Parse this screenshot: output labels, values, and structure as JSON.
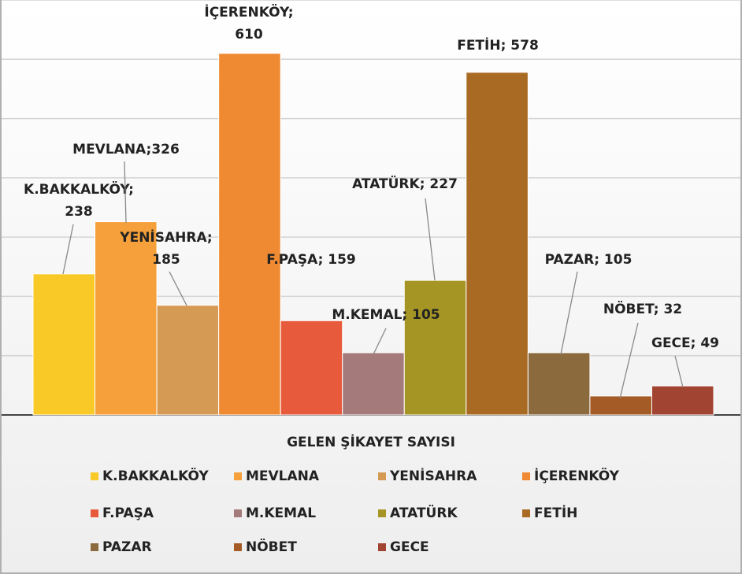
{
  "chart_data": {
    "type": "bar",
    "categories": [
      "K.BAKKALKÖY",
      "MEVLANA",
      "YENİSAHRA",
      "İÇERENKÖY",
      "F.PAŞA",
      "M.KEMAL",
      "ATATÜRK",
      "FETİH",
      "PAZAR",
      "NÖBET",
      "GECE"
    ],
    "values": [
      238,
      326,
      185,
      610,
      159,
      105,
      227,
      578,
      105,
      32,
      49
    ],
    "value_labels": [
      "K.BAKKALKÖY;\n238",
      "MEVLANA;326",
      "YENİSAHRA;\n185",
      "İÇERENKÖY;\n610",
      "F.PAŞA; 159",
      "M.KEMAL; 105",
      "ATATÜRK; 227",
      "FETİH; 578",
      "PAZAR; 105",
      "NÖBET; 32",
      "GECE; 49"
    ],
    "colors": [
      "#f9c928",
      "#f5a03a",
      "#d59b55",
      "#ef8a33",
      "#e85a3c",
      "#a57a7b",
      "#a59524",
      "#a96b23",
      "#8b6a3e",
      "#a55b26",
      "#a24432"
    ],
    "xlabel": "GELEN ŞİKAYET SAYISI",
    "ylim": [
      0,
      700
    ],
    "yticks": [
      0,
      100,
      200,
      300,
      400,
      500,
      600,
      700
    ],
    "grid": true
  }
}
